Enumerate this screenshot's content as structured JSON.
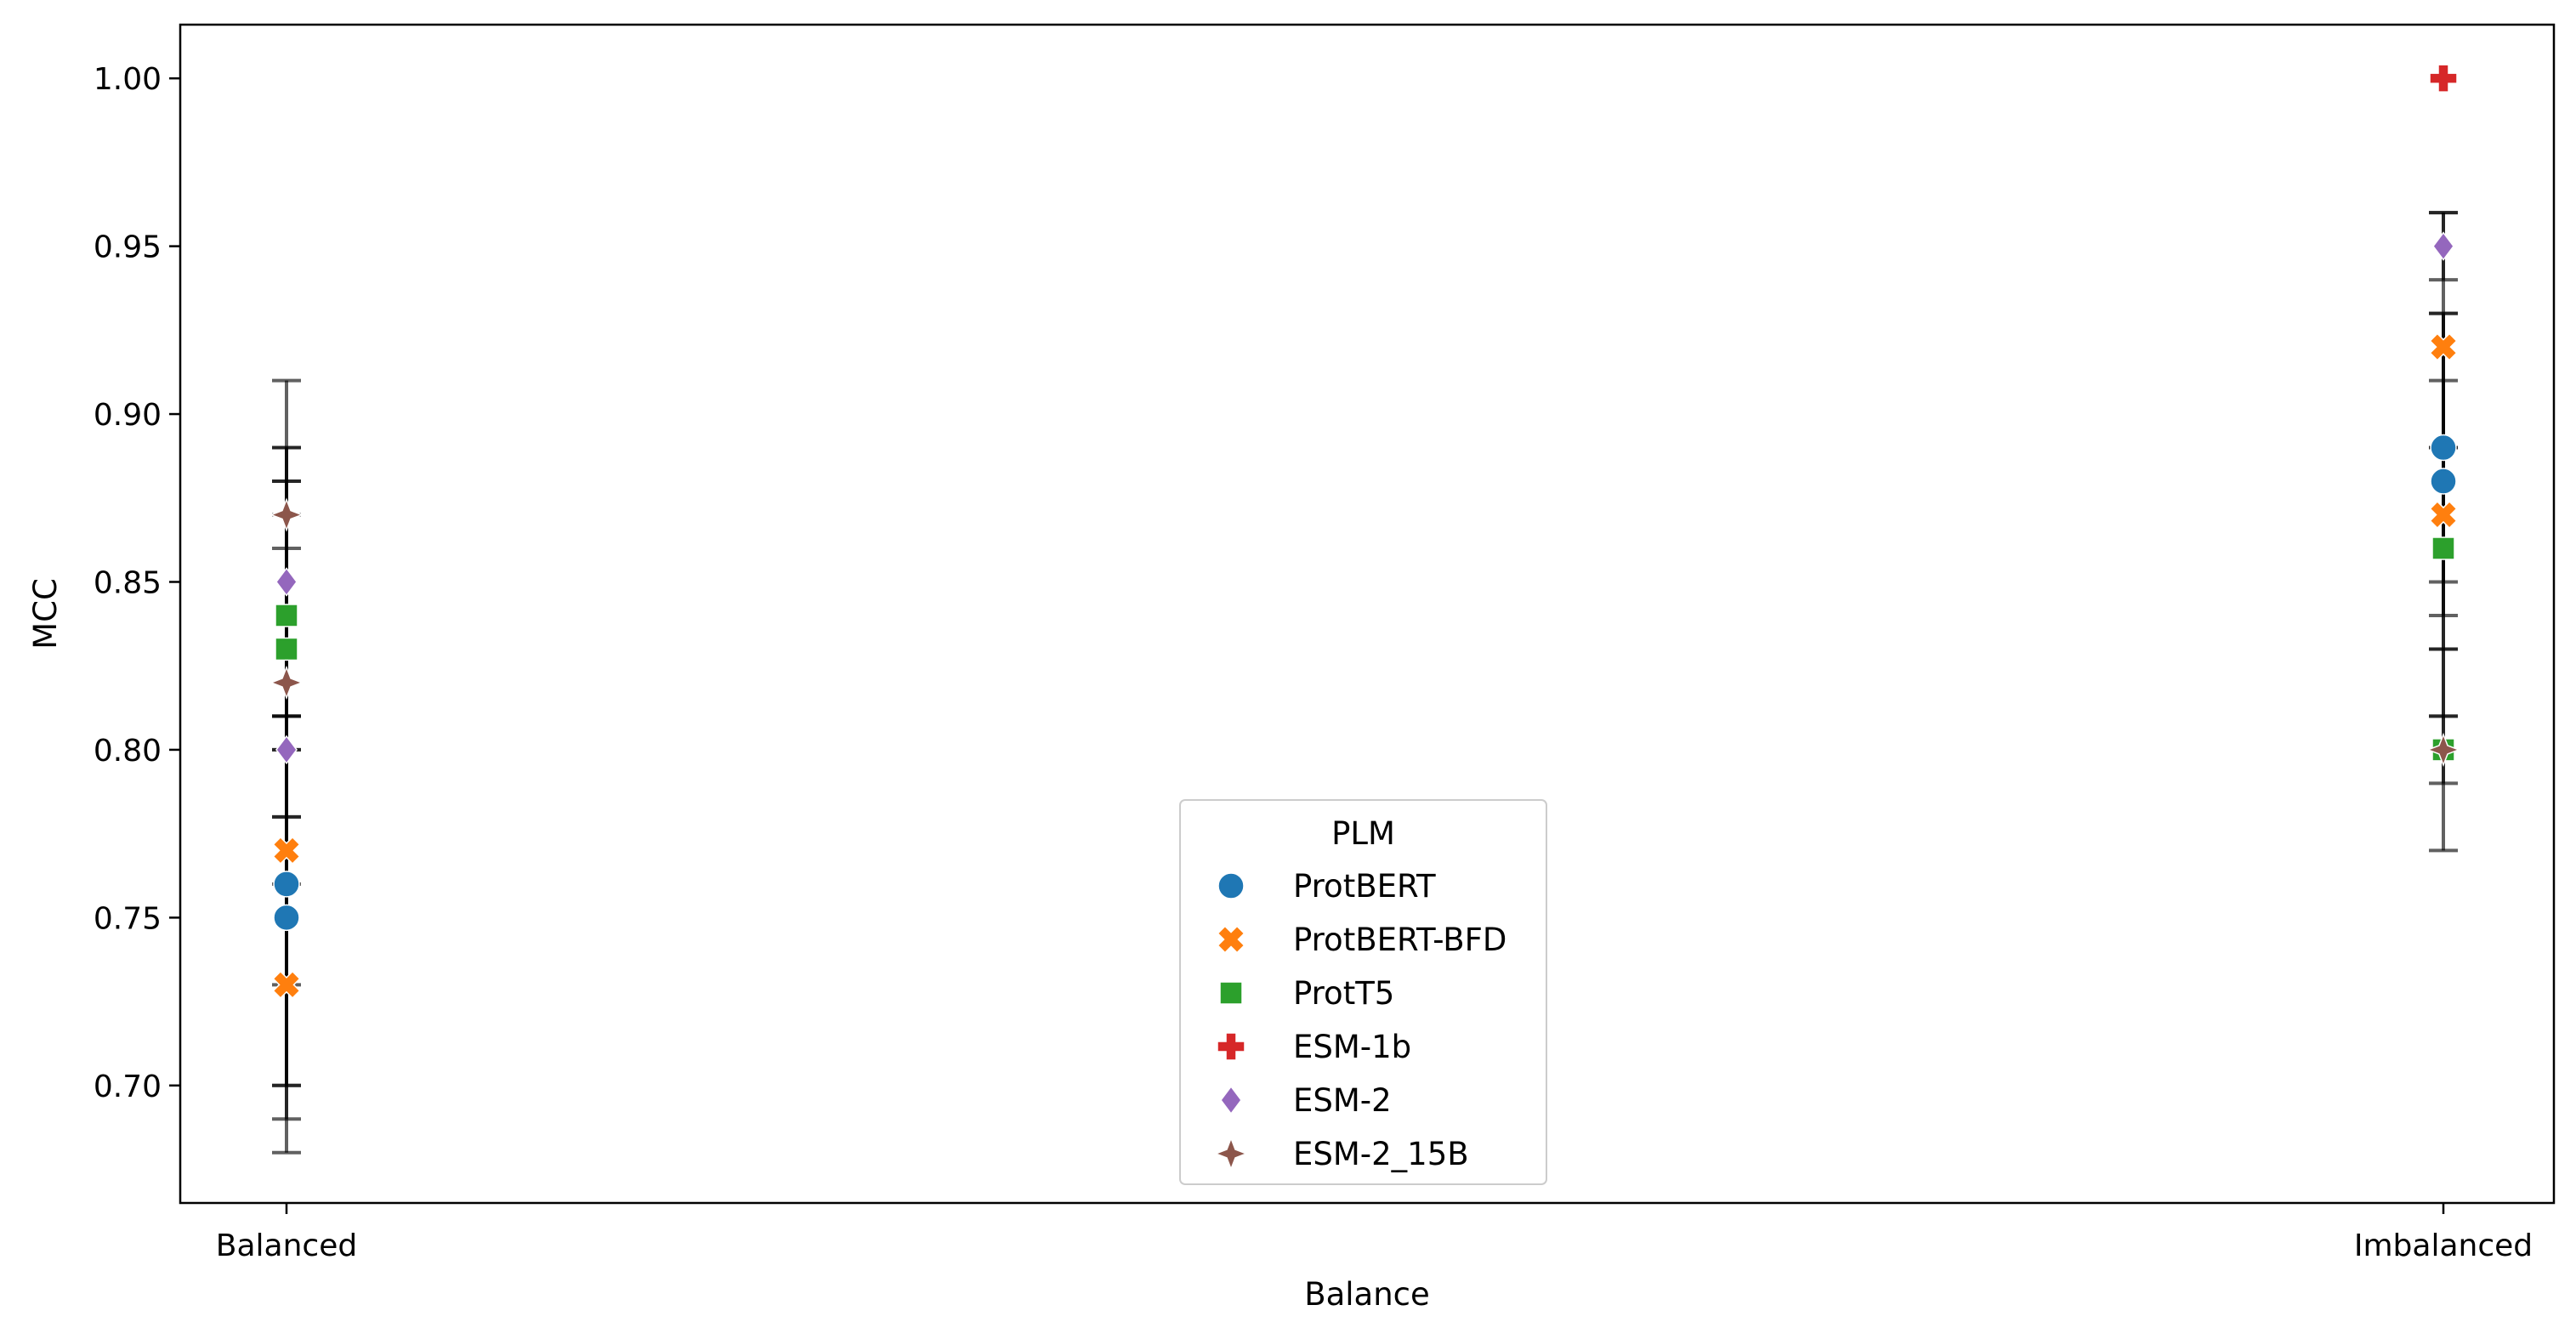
{
  "chart_data": {
    "type": "scatter",
    "xlabel": "Balance",
    "ylabel": "MCC",
    "categories": [
      "Balanced",
      "Imbalanced"
    ],
    "ylim": [
      0.665,
      1.016
    ],
    "yticks": [
      0.7,
      0.75,
      0.8,
      0.85,
      0.9,
      0.95,
      1.0
    ],
    "grid": false,
    "legend": {
      "title": "PLM",
      "placement": "lower-center"
    },
    "series": [
      {
        "name": "ProtBERT",
        "marker": "circle",
        "color": "#1f77b4",
        "points": [
          {
            "category": "Balanced",
            "y": 0.76,
            "err": [
              0.69,
              0.87
            ]
          },
          {
            "category": "Balanced",
            "y": 0.75,
            "err": [
              0.7,
              0.8
            ]
          },
          {
            "category": "Imbalanced",
            "y": 0.89,
            "err": [
              0.84,
              0.93
            ]
          },
          {
            "category": "Imbalanced",
            "y": 0.88,
            "err": [
              0.83,
              0.93
            ]
          }
        ]
      },
      {
        "name": "ProtBERT-BFD",
        "marker": "x",
        "color": "#ff7f0e",
        "points": [
          {
            "category": "Balanced",
            "y": 0.77,
            "err": [
              0.7,
              0.81
            ]
          },
          {
            "category": "Balanced",
            "y": 0.73,
            "err": [
              0.68,
              0.78
            ]
          },
          {
            "category": "Imbalanced",
            "y": 0.92,
            "err": [
              0.89,
              0.96
            ]
          },
          {
            "category": "Imbalanced",
            "y": 0.87,
            "err": [
              0.85,
              0.91
            ]
          }
        ]
      },
      {
        "name": "ProtT5",
        "marker": "square",
        "color": "#2ca02c",
        "points": [
          {
            "category": "Balanced",
            "y": 0.84,
            "err": [
              0.78,
              0.89
            ]
          },
          {
            "category": "Balanced",
            "y": 0.83,
            "err": [
              0.8,
              0.88
            ]
          },
          {
            "category": "Imbalanced",
            "y": 0.86,
            "err": [
              0.81,
              0.89
            ]
          },
          {
            "category": "Imbalanced",
            "y": 0.8,
            "err": [
              0.77,
              0.83
            ]
          }
        ]
      },
      {
        "name": "ESM-1b",
        "marker": "plus",
        "color": "#d62728",
        "points": [
          {
            "category": "Imbalanced",
            "y": 1.0,
            "err": [
              1.0,
              1.0
            ]
          }
        ]
      },
      {
        "name": "ESM-2",
        "marker": "diamond",
        "color": "#9467bd",
        "points": [
          {
            "category": "Balanced",
            "y": 0.85,
            "err": [
              0.81,
              0.89
            ]
          },
          {
            "category": "Balanced",
            "y": 0.8,
            "err": [
              0.73,
              0.86
            ]
          },
          {
            "category": "Imbalanced",
            "y": 0.95,
            "err": [
              0.94,
              0.96
            ]
          }
        ]
      },
      {
        "name": "ESM-2_15B",
        "marker": "star4",
        "color": "#8c564b",
        "points": [
          {
            "category": "Balanced",
            "y": 0.87,
            "err": [
              0.81,
              0.91
            ]
          },
          {
            "category": "Balanced",
            "y": 0.82,
            "err": [
              0.76,
              0.88
            ]
          },
          {
            "category": "Imbalanced",
            "y": 0.8,
            "err": [
              0.79,
              0.81
            ]
          }
        ]
      }
    ]
  }
}
